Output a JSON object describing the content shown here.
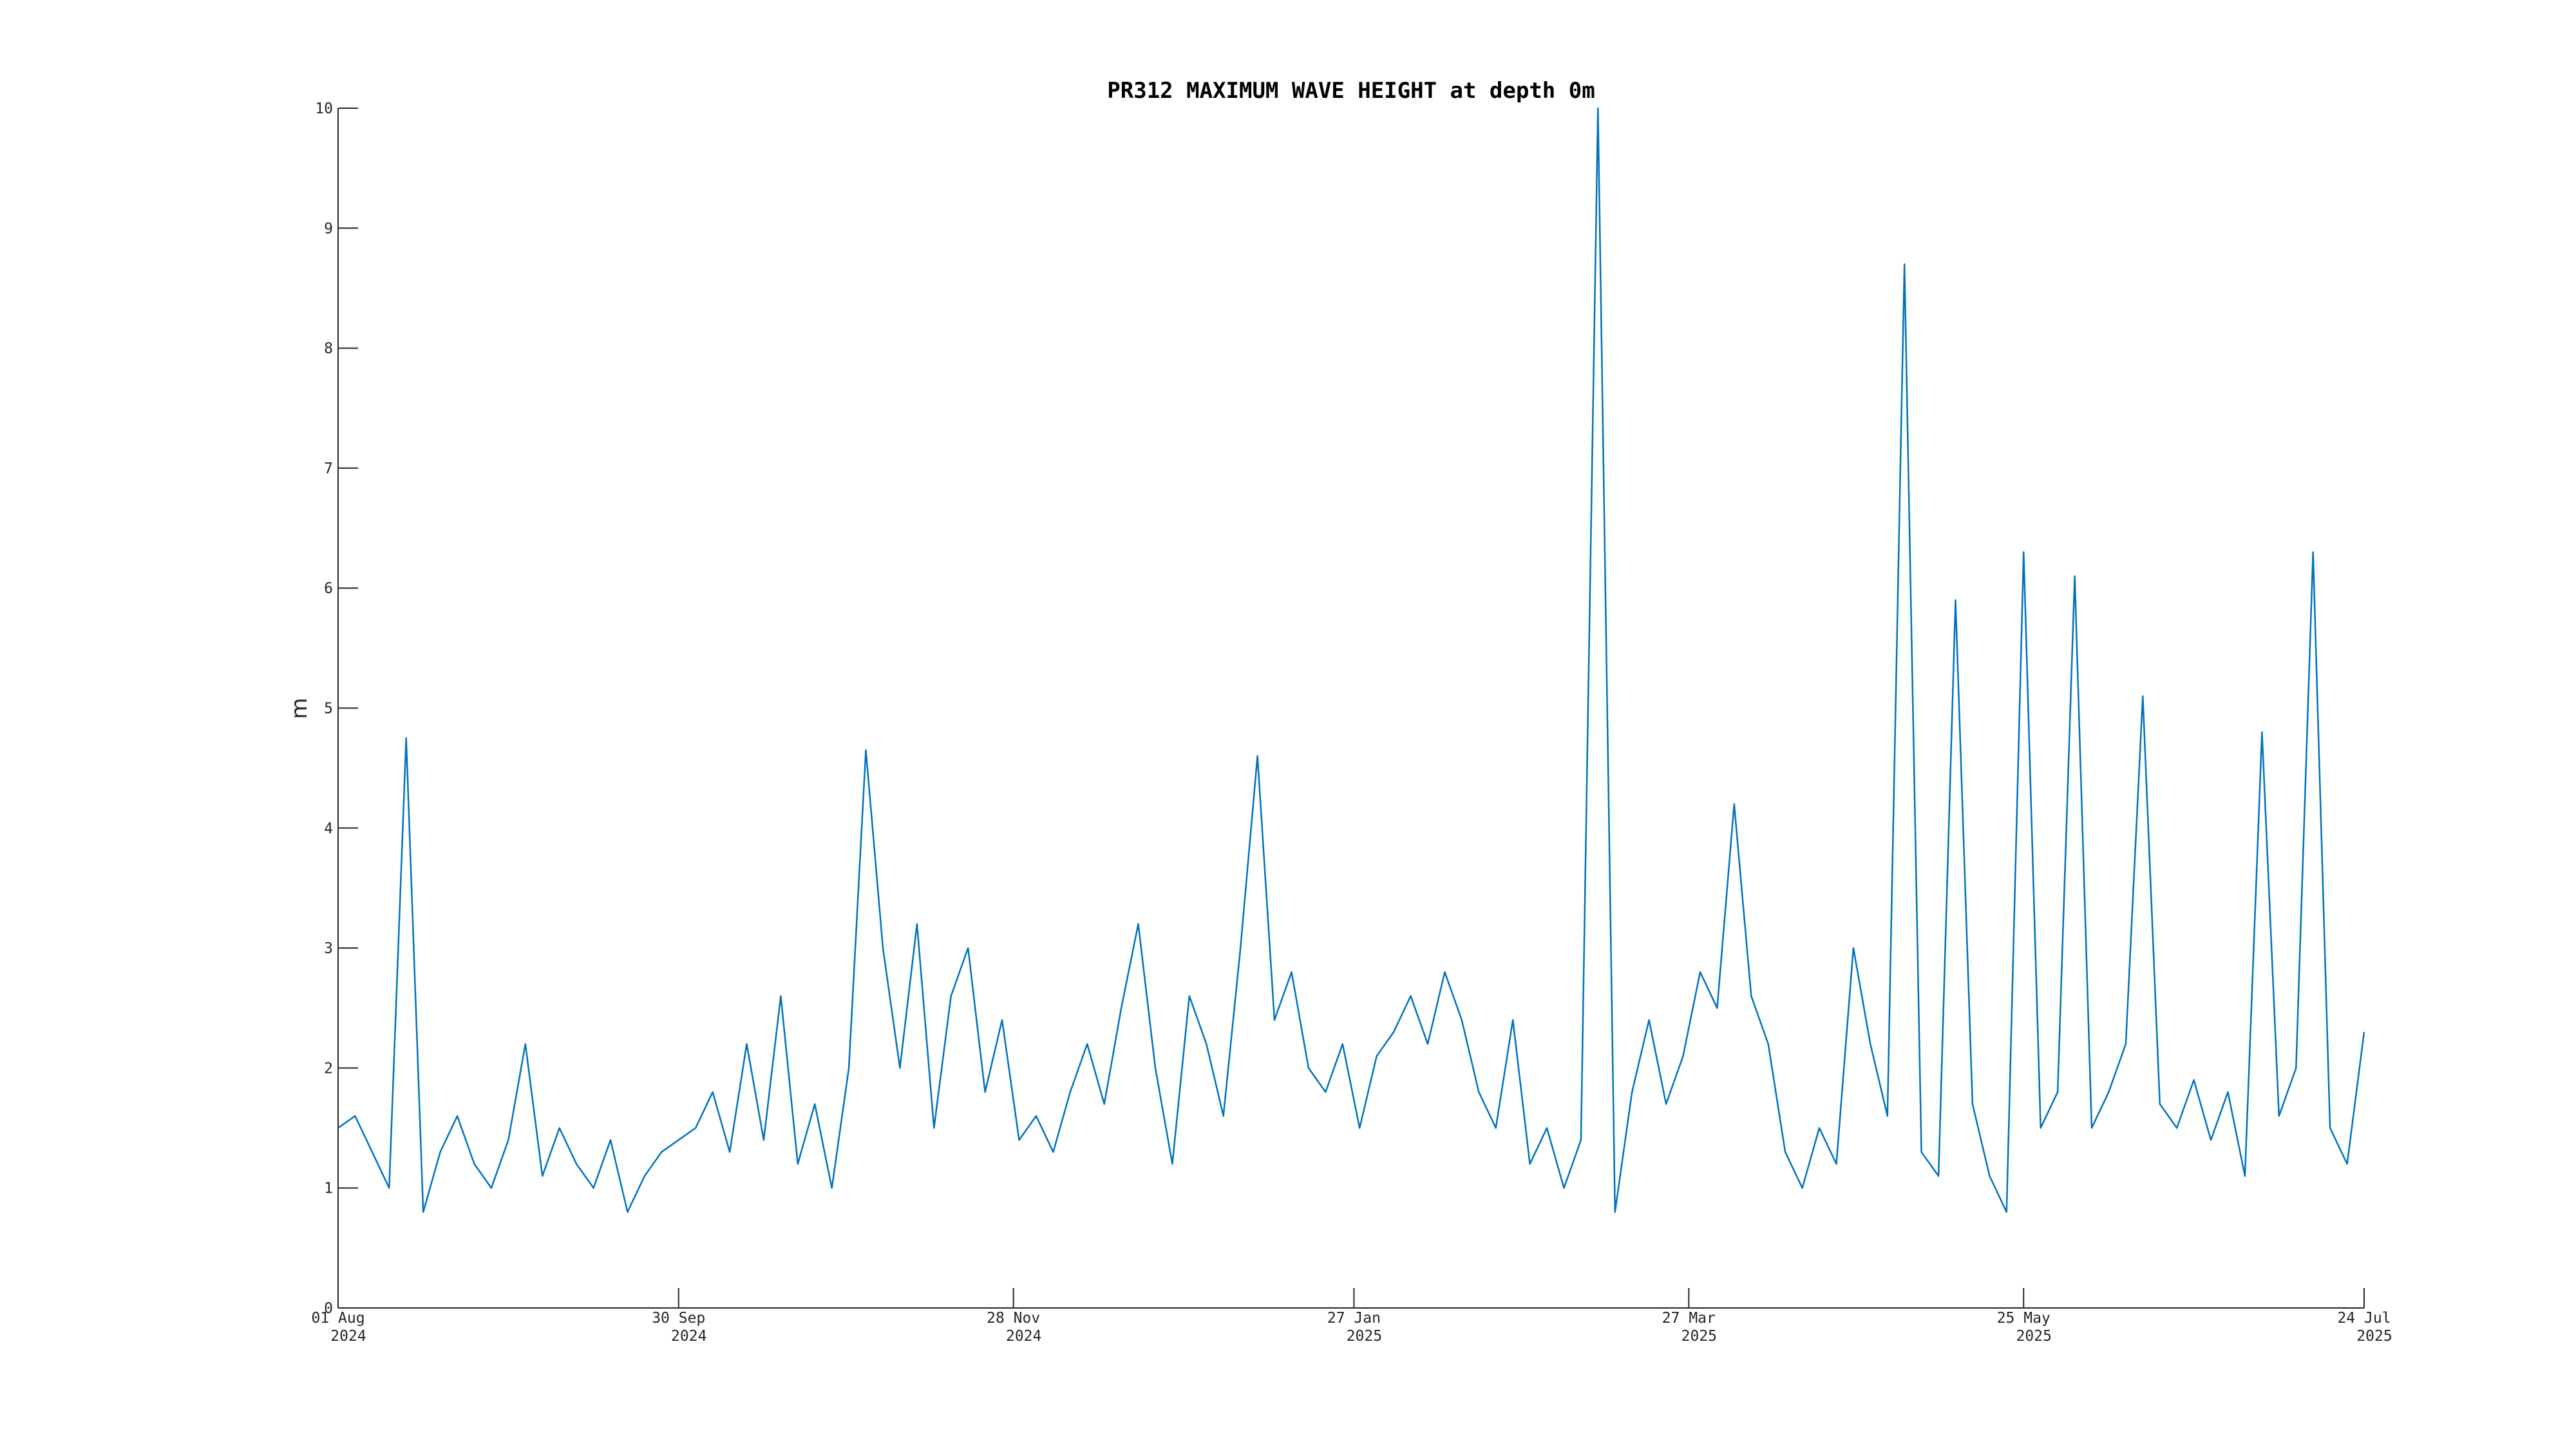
{
  "chart_data": {
    "type": "line",
    "title": "PR312 MAXIMUM WAVE HEIGHT at depth 0m",
    "ylabel": "m",
    "xlim": [
      "2024-08-01",
      "2025-07-24"
    ],
    "xticks": [
      {
        "value": "2024-08-01",
        "label": [
          "01 Aug",
          "2024"
        ]
      },
      {
        "value": "2024-09-30",
        "label": [
          "30 Sep",
          "2024"
        ]
      },
      {
        "value": "2024-11-28",
        "label": [
          "28 Nov",
          "2024"
        ]
      },
      {
        "value": "2025-01-27",
        "label": [
          "27 Jan",
          "2025"
        ]
      },
      {
        "value": "2025-03-27",
        "label": [
          "27 Mar",
          "2025"
        ]
      },
      {
        "value": "2025-05-25",
        "label": [
          "25 May",
          "2025"
        ]
      },
      {
        "value": "2025-07-24",
        "label": [
          "24 Jul",
          "2025"
        ]
      }
    ],
    "ylim": [
      0,
      10
    ],
    "yticks": [
      0,
      1,
      2,
      3,
      4,
      5,
      6,
      7,
      8,
      9,
      10
    ],
    "grid": false,
    "series": [
      {
        "color": "#0072bd",
        "x": [
          "2024-08-01",
          "2024-08-04",
          "2024-08-07",
          "2024-08-10",
          "2024-08-13",
          "2024-08-16",
          "2024-08-19",
          "2024-08-22",
          "2024-08-25",
          "2024-08-28",
          "2024-08-31",
          "2024-09-03",
          "2024-09-06",
          "2024-09-09",
          "2024-09-12",
          "2024-09-15",
          "2024-09-18",
          "2024-09-21",
          "2024-09-24",
          "2024-09-27",
          "2024-09-30",
          "2024-10-03",
          "2024-10-06",
          "2024-10-09",
          "2024-10-12",
          "2024-10-15",
          "2024-10-18",
          "2024-10-21",
          "2024-10-24",
          "2024-10-27",
          "2024-10-30",
          "2024-11-02",
          "2024-11-05",
          "2024-11-08",
          "2024-11-11",
          "2024-11-14",
          "2024-11-17",
          "2024-11-20",
          "2024-11-23",
          "2024-11-26",
          "2024-11-29",
          "2024-12-02",
          "2024-12-05",
          "2024-12-08",
          "2024-12-11",
          "2024-12-14",
          "2024-12-17",
          "2024-12-20",
          "2024-12-23",
          "2024-12-26",
          "2024-12-29",
          "2025-01-01",
          "2025-01-04",
          "2025-01-07",
          "2025-01-10",
          "2025-01-13",
          "2025-01-16",
          "2025-01-19",
          "2025-01-22",
          "2025-01-25",
          "2025-01-28",
          "2025-01-31",
          "2025-02-03",
          "2025-02-06",
          "2025-02-09",
          "2025-02-12",
          "2025-02-15",
          "2025-02-18",
          "2025-02-21",
          "2025-02-24",
          "2025-02-27",
          "2025-03-02",
          "2025-03-05",
          "2025-03-08",
          "2025-03-11",
          "2025-03-14",
          "2025-03-17",
          "2025-03-20",
          "2025-03-23",
          "2025-03-26",
          "2025-03-29",
          "2025-04-01",
          "2025-04-04",
          "2025-04-07",
          "2025-04-10",
          "2025-04-13",
          "2025-04-16",
          "2025-04-19",
          "2025-04-22",
          "2025-04-25",
          "2025-04-28",
          "2025-05-01",
          "2025-05-04",
          "2025-05-07",
          "2025-05-10",
          "2025-05-13",
          "2025-05-16",
          "2025-05-19",
          "2025-05-22",
          "2025-05-25",
          "2025-05-28",
          "2025-05-31",
          "2025-06-03",
          "2025-06-06",
          "2025-06-09",
          "2025-06-12",
          "2025-06-15",
          "2025-06-18",
          "2025-06-21",
          "2025-06-24",
          "2025-06-27",
          "2025-06-30",
          "2025-07-03",
          "2025-07-06",
          "2025-07-09",
          "2025-07-12",
          "2025-07-15",
          "2025-07-18",
          "2025-07-21",
          "2025-07-24"
        ],
        "values": [
          1.5,
          1.6,
          1.3,
          1.0,
          4.75,
          0.8,
          1.3,
          1.6,
          1.2,
          1.0,
          1.4,
          2.2,
          1.1,
          1.5,
          1.2,
          1.0,
          1.4,
          0.8,
          1.1,
          1.3,
          1.4,
          1.5,
          1.8,
          1.3,
          2.2,
          1.4,
          2.6,
          1.2,
          1.7,
          1.0,
          2.0,
          4.65,
          3.0,
          2.0,
          3.2,
          1.5,
          2.6,
          3.0,
          1.8,
          2.4,
          1.4,
          1.6,
          1.3,
          1.8,
          2.2,
          1.7,
          2.5,
          3.2,
          2.0,
          1.2,
          2.6,
          2.2,
          1.6,
          3.0,
          4.6,
          2.4,
          2.8,
          2.0,
          1.8,
          2.2,
          1.5,
          2.1,
          2.3,
          2.6,
          2.2,
          2.8,
          2.4,
          1.8,
          1.5,
          2.4,
          1.2,
          1.5,
          1.0,
          1.4,
          10.0,
          0.8,
          1.8,
          2.4,
          1.7,
          2.1,
          2.8,
          2.5,
          4.2,
          2.6,
          2.2,
          1.3,
          1.0,
          1.5,
          1.2,
          3.0,
          2.2,
          1.6,
          8.7,
          1.3,
          1.1,
          5.9,
          1.7,
          1.1,
          0.8,
          6.3,
          1.5,
          1.8,
          6.1,
          1.5,
          1.8,
          2.2,
          5.1,
          1.7,
          1.5,
          1.9,
          1.4,
          1.8,
          1.1,
          4.8,
          1.6,
          2.0,
          6.3,
          1.5,
          1.2,
          2.3
        ]
      }
    ]
  }
}
